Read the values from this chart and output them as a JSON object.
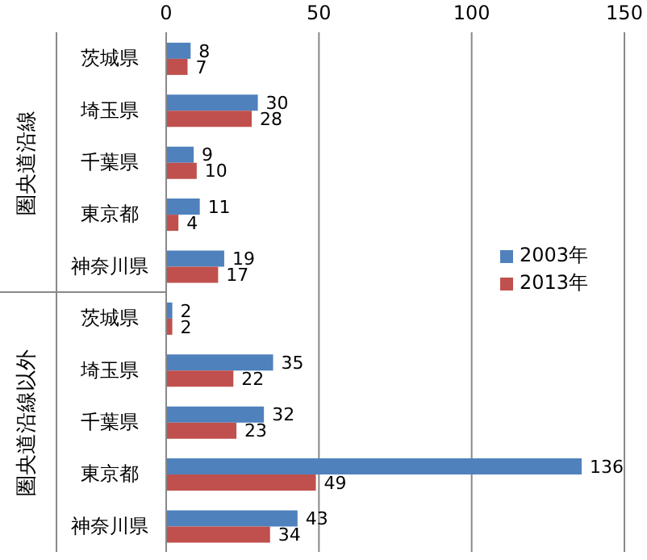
{
  "chart_data": {
    "type": "bar",
    "orientation": "horizontal",
    "categories": [
      "茨城県",
      "埼玉県",
      "千葉県",
      "東京都",
      "神奈川県",
      "茨城県",
      "埼玉県",
      "千葉県",
      "東京都",
      "神奈川県"
    ],
    "series": [
      {
        "name": "2003年",
        "color": "#4f81bd",
        "values": [
          8,
          30,
          9,
          11,
          19,
          2,
          35,
          32,
          136,
          43
        ]
      },
      {
        "name": "2013年",
        "color": "#c0504d",
        "values": [
          7,
          28,
          10,
          4,
          17,
          2,
          22,
          23,
          49,
          34
        ]
      }
    ],
    "xlim": [
      0,
      150
    ],
    "xticks": [
      0,
      50,
      100,
      150
    ],
    "grid": "x",
    "legend": "right",
    "data_labels": true,
    "annotations": [
      "圏央道沿線",
      "圏央道沿線以外"
    ]
  }
}
